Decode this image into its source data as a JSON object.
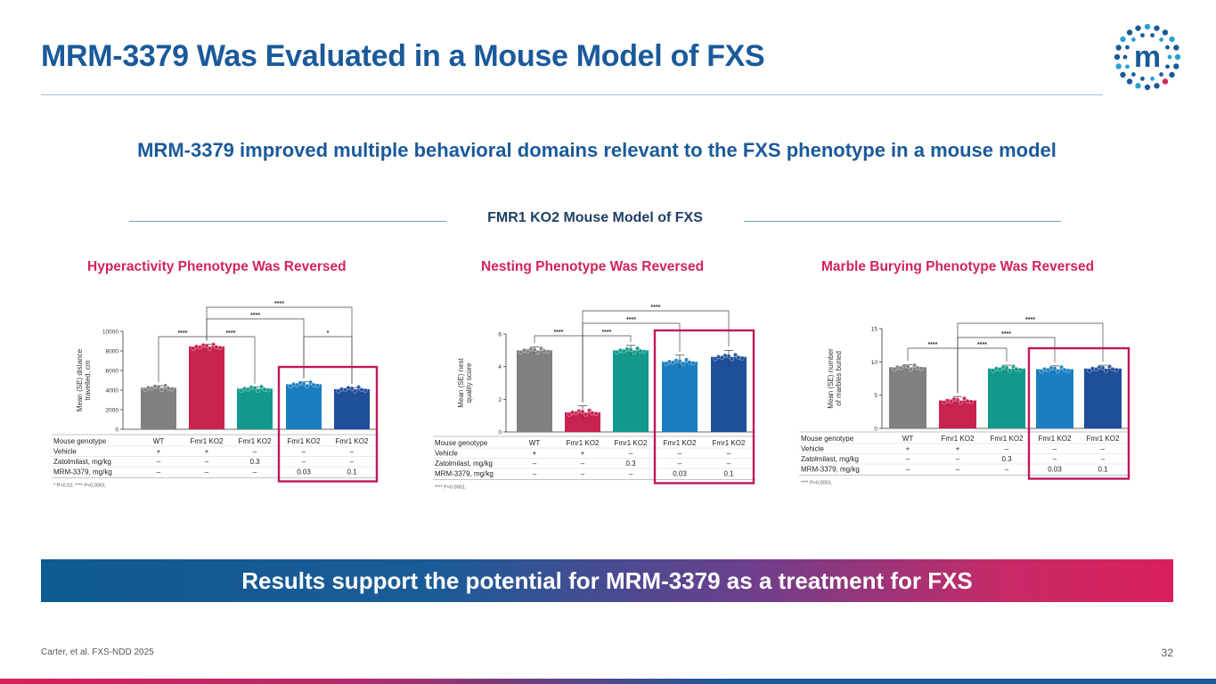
{
  "slide": {
    "title": "MRM-3379 Was Evaluated in a Mouse Model of FXS",
    "subtitle": "MRM-3379 improved multiple behavioral domains relevant to the FXS phenotype in a mouse model",
    "section_label": "FMR1 KO2 Mouse Model of FXS",
    "banner": "Results support the potential for MRM-3379 as a treatment for FXS",
    "citation": "Carter, et al. FXS-NDD 2025",
    "page_number": "32",
    "logo_letter": "m"
  },
  "colors": {
    "WT": "#808080",
    "Vehicle": "#c8224f",
    "Zatolmilast": "#12998b",
    "MRM_0_03": "#1a7ec0",
    "MRM_0_1": "#1f4e9a",
    "highlight_box": "#c0185a"
  },
  "table_rows": {
    "headers": [
      "Mouse genotype",
      "Vehicle",
      "Zatolmilast, mg/kg",
      "MRM-3379, mg/kg"
    ],
    "columns": [
      [
        "WT",
        "+",
        "–",
        "–"
      ],
      [
        "Fmr1 KO2",
        "+",
        "–",
        "–"
      ],
      [
        "Fmr1 KO2",
        "–",
        "0.3",
        "–"
      ],
      [
        "Fmr1 KO2",
        "–",
        "–",
        "0.03"
      ],
      [
        "Fmr1 KO2",
        "–",
        "–",
        "0.1"
      ]
    ]
  },
  "chart_data": [
    {
      "type": "bar",
      "panel_title": "Hyperactivity Phenotype Was Reversed",
      "ylabel": "Mean (SE) distance travelled, cm",
      "ylim": [
        0,
        10000
      ],
      "yticks": [
        "0",
        "2000",
        "4000",
        "6000",
        "8000",
        "10000"
      ],
      "ytick_values": [
        0,
        2000,
        4000,
        6000,
        8000,
        10000
      ],
      "categories": [
        "WT",
        "Fmr1 KO2",
        "Fmr1 KO2",
        "Fmr1 KO2",
        "Fmr1 KO2"
      ],
      "values": [
        4250,
        8450,
        4150,
        4600,
        4100
      ],
      "errors": [
        200,
        250,
        150,
        250,
        150
      ],
      "significance": [
        {
          "from": 0,
          "to": 1,
          "label": "****"
        },
        {
          "from": 1,
          "to": 2,
          "label": "****"
        },
        {
          "from": 1,
          "to": 3,
          "label": "****"
        },
        {
          "from": 1,
          "to": 4,
          "label": "****"
        },
        {
          "from": 3,
          "to": 4,
          "label": "*"
        }
      ],
      "footnote": "* P<0.02; **** P<0.0001."
    },
    {
      "type": "bar",
      "panel_title": "Nesting Phenotype Was Reversed",
      "ylabel": "Mean (SE) nest quality score",
      "ylim": [
        0,
        6
      ],
      "yticks": [
        "0",
        "2",
        "4",
        "6"
      ],
      "ytick_values": [
        0,
        2,
        4,
        6
      ],
      "categories": [
        "WT",
        "Fmr1 KO2",
        "Fmr1 KO2",
        "Fmr1 KO2",
        "Fmr1 KO2"
      ],
      "values": [
        5,
        1.2,
        5,
        4.3,
        4.6
      ],
      "errors": [
        0.2,
        0.4,
        0.3,
        0.4,
        0.4
      ],
      "significance": [
        {
          "from": 0,
          "to": 1,
          "label": "****"
        },
        {
          "from": 1,
          "to": 2,
          "label": "****"
        },
        {
          "from": 1,
          "to": 3,
          "label": "****"
        },
        {
          "from": 1,
          "to": 4,
          "label": "****"
        }
      ],
      "footnote": "**** P<0.0001."
    },
    {
      "type": "bar",
      "panel_title": "Marble Burying Phenotype Was Reversed",
      "ylabel": "Mean (SE) number of marbles buried",
      "ylim": [
        0,
        15
      ],
      "yticks": [
        "0",
        "5",
        "10",
        "15"
      ],
      "ytick_values": [
        0,
        5,
        10,
        15
      ],
      "categories": [
        "WT",
        "Fmr1 KO2",
        "Fmr1 KO2",
        "Fmr1 KO2",
        "Fmr1 KO2"
      ],
      "values": [
        9.2,
        4.2,
        9,
        8.9,
        9
      ],
      "errors": [
        0.4,
        0.6,
        0.5,
        0.5,
        0.5
      ],
      "significance": [
        {
          "from": 0,
          "to": 1,
          "label": "****"
        },
        {
          "from": 1,
          "to": 2,
          "label": "****"
        },
        {
          "from": 1,
          "to": 3,
          "label": "****"
        },
        {
          "from": 1,
          "to": 4,
          "label": "****"
        }
      ],
      "footnote": "**** P<0.0001."
    }
  ]
}
